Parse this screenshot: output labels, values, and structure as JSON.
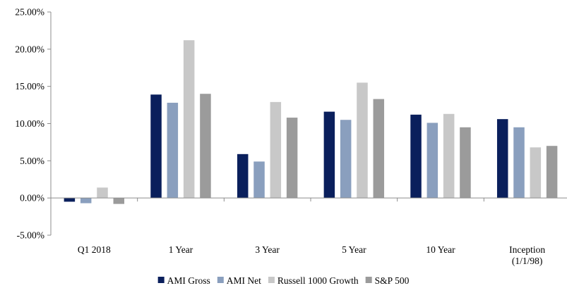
{
  "chart_data": {
    "type": "bar",
    "title": "",
    "xlabel": "",
    "ylabel": "",
    "ylim": [
      -5,
      25
    ],
    "yticks": [
      -5,
      0,
      5,
      10,
      15,
      20,
      25
    ],
    "ytick_labels": [
      "-5.00%",
      "0.00%",
      "5.00%",
      "10.00%",
      "15.00%",
      "20.00%",
      "25.00%"
    ],
    "grid": false,
    "legend_position": "bottom",
    "categories": [
      "Q1 2018",
      "1 Year",
      "3 Year",
      "5 Year",
      "10 Year",
      "Inception (1/1/98)"
    ],
    "category_lines": [
      [
        "Q1 2018"
      ],
      [
        "1 Year"
      ],
      [
        "3 Year"
      ],
      [
        "5 Year"
      ],
      [
        "10 Year"
      ],
      [
        "Inception",
        "(1/1/98)"
      ]
    ],
    "series": [
      {
        "name": "AMI Gross",
        "color": "#0a1f5c",
        "values": [
          -0.5,
          13.9,
          5.9,
          11.6,
          11.2,
          10.6
        ]
      },
      {
        "name": "AMI Net",
        "color": "#8a9fbe",
        "values": [
          -0.7,
          12.8,
          4.9,
          10.5,
          10.1,
          9.5
        ]
      },
      {
        "name": "Russell 1000 Growth",
        "color": "#c8c8c8",
        "values": [
          1.4,
          21.2,
          12.9,
          15.5,
          11.3,
          6.8
        ]
      },
      {
        "name": "S&P 500",
        "color": "#9b9b9b",
        "values": [
          -0.8,
          14.0,
          10.8,
          13.3,
          9.5,
          7.0
        ]
      }
    ]
  }
}
